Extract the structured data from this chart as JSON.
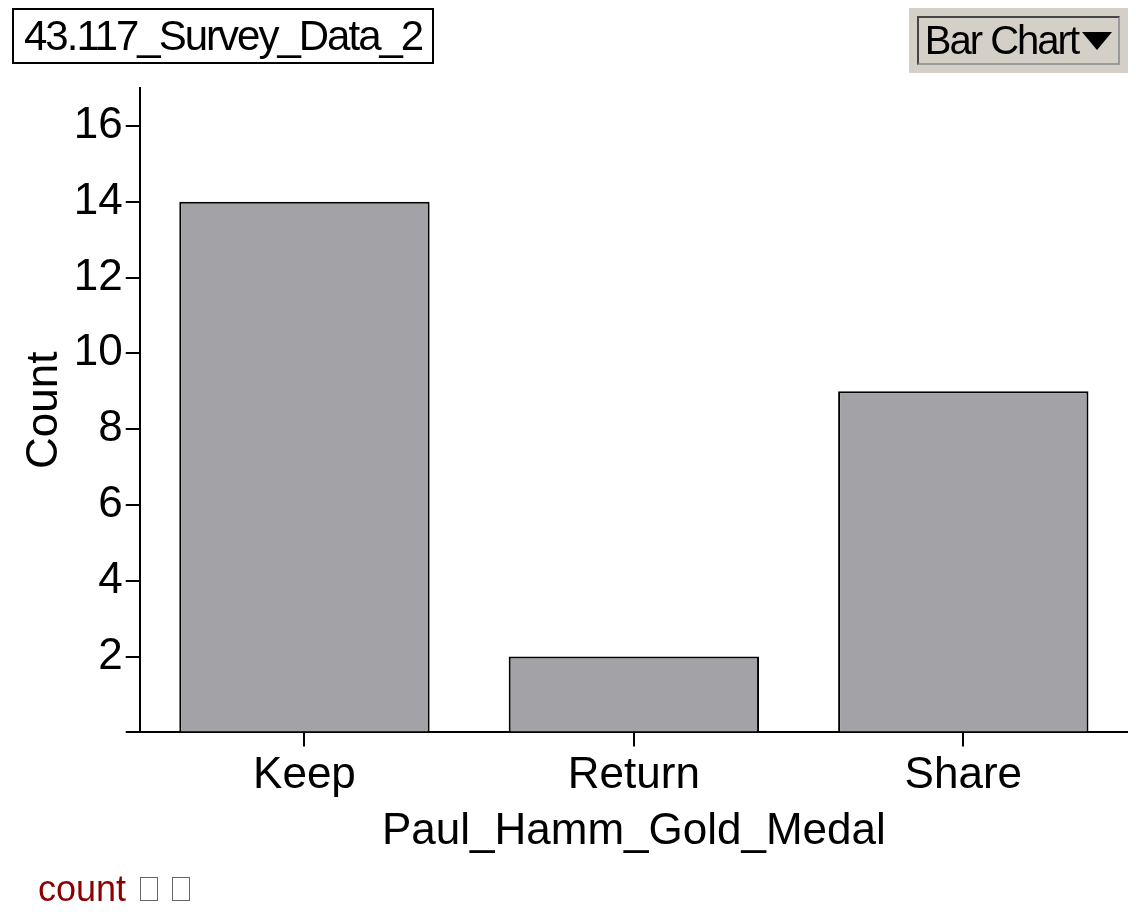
{
  "chart_data": {
    "type": "bar",
    "title": "43.117_Survey_Data_2",
    "xlabel": "Paul_Hamm_Gold_Medal",
    "ylabel": "Count",
    "categories": [
      "Keep",
      "Return",
      "Share"
    ],
    "values": [
      14,
      2,
      9
    ],
    "color": "#a3a2a7",
    "ylim": [
      0,
      17
    ],
    "yticks": [
      {
        "value": 0,
        "label": null
      },
      2,
      4,
      6,
      8,
      10,
      12,
      14,
      16
    ],
    "annotations": [
      "Bar Chart",
      "count"
    ]
  }
}
